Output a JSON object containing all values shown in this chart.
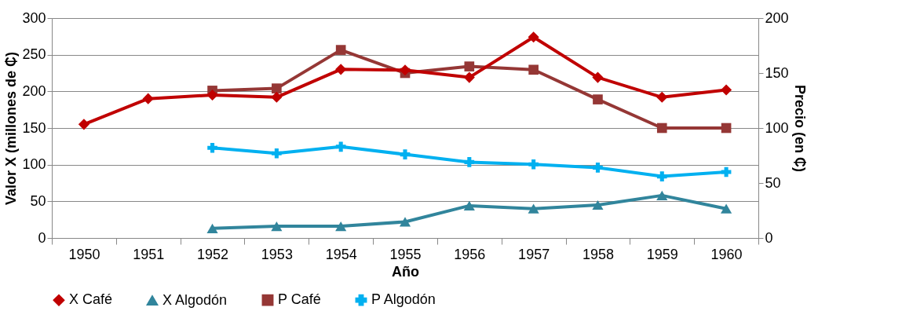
{
  "chart_data": {
    "type": "line",
    "xlabel": "Año",
    "ylabel": "Valor X (millones de ₵)",
    "y2label": "Precio (en ₵)",
    "categories": [
      "1950",
      "1951",
      "1952",
      "1953",
      "1954",
      "1955",
      "1956",
      "1957",
      "1958",
      "1959",
      "1960"
    ],
    "series": [
      {
        "name": "X Café",
        "color": "#c00000",
        "marker": "diamond",
        "values": [
          155,
          190,
          195,
          192,
          230,
          229,
          219,
          274,
          219,
          192,
          202
        ]
      },
      {
        "name": "X Algodón",
        "color": "#31859c",
        "marker": "triangle",
        "values": [
          null,
          null,
          13,
          16,
          16,
          22,
          44,
          40,
          45,
          58,
          40
        ]
      },
      {
        "name": "P Café",
        "color": "#953735",
        "marker": "square",
        "axis": "y2",
        "values": [
          null,
          null,
          134,
          136,
          171,
          150,
          156,
          153,
          126,
          100,
          100
        ]
      },
      {
        "name": "P Algodón",
        "color": "#00b0f0",
        "marker": "cross",
        "axis": "y2",
        "values": [
          null,
          null,
          82,
          77,
          83,
          76,
          69,
          67,
          64,
          56,
          60
        ]
      }
    ],
    "ylim": [
      0,
      300
    ],
    "yticks": [
      0,
      50,
      100,
      150,
      200,
      250,
      300
    ],
    "y2lim": [
      0,
      200
    ],
    "y2ticks": [
      0,
      50,
      100,
      150,
      200
    ],
    "grid": "y",
    "legend": "bottom"
  }
}
